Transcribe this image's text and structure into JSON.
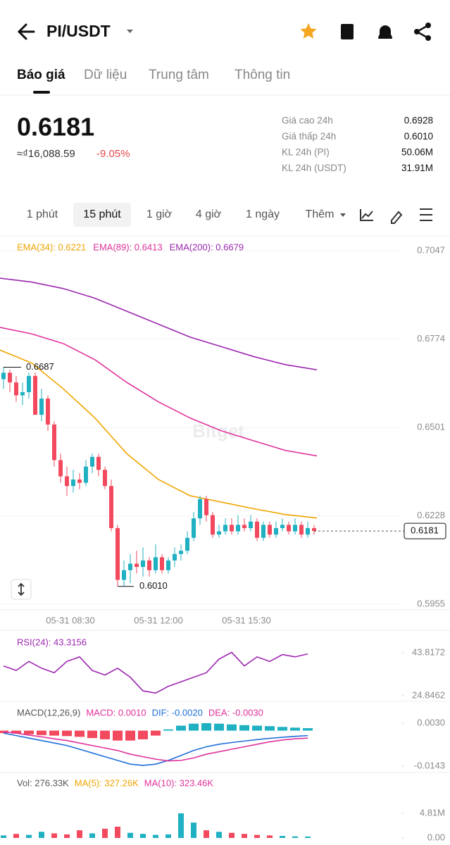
{
  "header": {
    "pair": "PI/USDT"
  },
  "tabs": {
    "items": [
      "Báo giá",
      "Dữ liệu",
      "Trung tâm",
      "Thông tin"
    ],
    "selected": 0
  },
  "price": {
    "last": "0.6181",
    "fiat": "≈₫16,088.59",
    "change": "-9.05%"
  },
  "stats": [
    {
      "label": "Giá cao 24h",
      "value": "0.6928"
    },
    {
      "label": "Giá thấp 24h",
      "value": "0.6010"
    },
    {
      "label": "KL 24h (PI)",
      "value": "50.06M"
    },
    {
      "label": "KL 24h (USDT)",
      "value": "31.91M"
    }
  ],
  "timeframes": {
    "items": [
      "1 phút",
      "15 phút",
      "1 giờ",
      "4 giờ",
      "1 ngày",
      "Thêm"
    ],
    "selected": 1
  },
  "main": {
    "watermark": "Bitget",
    "ylim": [
      0.5955,
      0.7047
    ],
    "yticks": [
      0.7047,
      0.6774,
      0.6501,
      0.6228,
      0.5955
    ],
    "xlabels": [
      "05-31 08:30",
      "05-31 12:00",
      "05-31 15:30"
    ],
    "current": {
      "value": 0.6181,
      "label": "0.6181"
    },
    "high": 0.6687,
    "low": {
      "value": 0.601,
      "label": "0.6010"
    },
    "ema": [
      {
        "name": "EMA(34): 0.6221",
        "color": "#f0a500",
        "values": [
          0.674,
          0.67,
          0.662,
          0.653,
          0.642,
          0.634,
          0.629,
          0.627,
          0.625,
          0.6232,
          0.6221
        ]
      },
      {
        "name": "EMA(89): 0.6413",
        "color": "#e0319b",
        "values": [
          0.681,
          0.679,
          0.676,
          0.671,
          0.664,
          0.658,
          0.653,
          0.649,
          0.646,
          0.643,
          0.6413
        ]
      },
      {
        "name": "EMA(200): 0.6679",
        "color": "#9c27b0",
        "values": [
          0.6962,
          0.695,
          0.693,
          0.69,
          0.686,
          0.682,
          0.678,
          0.675,
          0.672,
          0.6695,
          0.6679
        ]
      }
    ],
    "candles": [
      {
        "o": 0.665,
        "h": 0.6687,
        "l": 0.662,
        "c": 0.667
      },
      {
        "o": 0.667,
        "h": 0.668,
        "l": 0.661,
        "c": 0.664
      },
      {
        "o": 0.664,
        "h": 0.666,
        "l": 0.658,
        "c": 0.66
      },
      {
        "o": 0.66,
        "h": 0.664,
        "l": 0.657,
        "c": 0.661
      },
      {
        "o": 0.661,
        "h": 0.667,
        "l": 0.659,
        "c": 0.666
      },
      {
        "o": 0.666,
        "h": 0.667,
        "l": 0.654,
        "c": 0.654
      },
      {
        "o": 0.654,
        "h": 0.662,
        "l": 0.652,
        "c": 0.659
      },
      {
        "o": 0.659,
        "h": 0.66,
        "l": 0.649,
        "c": 0.651
      },
      {
        "o": 0.651,
        "h": 0.652,
        "l": 0.638,
        "c": 0.64
      },
      {
        "o": 0.64,
        "h": 0.642,
        "l": 0.633,
        "c": 0.635
      },
      {
        "o": 0.635,
        "h": 0.638,
        "l": 0.629,
        "c": 0.632
      },
      {
        "o": 0.632,
        "h": 0.637,
        "l": 0.63,
        "c": 0.634
      },
      {
        "o": 0.634,
        "h": 0.636,
        "l": 0.631,
        "c": 0.633
      },
      {
        "o": 0.633,
        "h": 0.64,
        "l": 0.632,
        "c": 0.638
      },
      {
        "o": 0.638,
        "h": 0.642,
        "l": 0.636,
        "c": 0.641
      },
      {
        "o": 0.641,
        "h": 0.642,
        "l": 0.635,
        "c": 0.637
      },
      {
        "o": 0.637,
        "h": 0.638,
        "l": 0.631,
        "c": 0.632
      },
      {
        "o": 0.632,
        "h": 0.634,
        "l": 0.618,
        "c": 0.619
      },
      {
        "o": 0.619,
        "h": 0.62,
        "l": 0.601,
        "c": 0.603
      },
      {
        "o": 0.603,
        "h": 0.609,
        "l": 0.601,
        "c": 0.606
      },
      {
        "o": 0.606,
        "h": 0.611,
        "l": 0.602,
        "c": 0.608
      },
      {
        "o": 0.608,
        "h": 0.612,
        "l": 0.605,
        "c": 0.607
      },
      {
        "o": 0.607,
        "h": 0.613,
        "l": 0.604,
        "c": 0.609
      },
      {
        "o": 0.609,
        "h": 0.61,
        "l": 0.604,
        "c": 0.606
      },
      {
        "o": 0.606,
        "h": 0.614,
        "l": 0.605,
        "c": 0.61
      },
      {
        "o": 0.61,
        "h": 0.611,
        "l": 0.605,
        "c": 0.606
      },
      {
        "o": 0.606,
        "h": 0.61,
        "l": 0.605,
        "c": 0.609
      },
      {
        "o": 0.609,
        "h": 0.613,
        "l": 0.607,
        "c": 0.611
      },
      {
        "o": 0.611,
        "h": 0.614,
        "l": 0.609,
        "c": 0.612
      },
      {
        "o": 0.612,
        "h": 0.618,
        "l": 0.611,
        "c": 0.616
      },
      {
        "o": 0.616,
        "h": 0.624,
        "l": 0.615,
        "c": 0.622
      },
      {
        "o": 0.622,
        "h": 0.629,
        "l": 0.62,
        "c": 0.628
      },
      {
        "o": 0.628,
        "h": 0.629,
        "l": 0.621,
        "c": 0.623
      },
      {
        "o": 0.623,
        "h": 0.624,
        "l": 0.616,
        "c": 0.617
      },
      {
        "o": 0.617,
        "h": 0.62,
        "l": 0.616,
        "c": 0.618
      },
      {
        "o": 0.618,
        "h": 0.622,
        "l": 0.617,
        "c": 0.62
      },
      {
        "o": 0.62,
        "h": 0.622,
        "l": 0.617,
        "c": 0.618
      },
      {
        "o": 0.618,
        "h": 0.623,
        "l": 0.617,
        "c": 0.62
      },
      {
        "o": 0.62,
        "h": 0.622,
        "l": 0.618,
        "c": 0.619
      },
      {
        "o": 0.619,
        "h": 0.623,
        "l": 0.618,
        "c": 0.621
      },
      {
        "o": 0.621,
        "h": 0.622,
        "l": 0.615,
        "c": 0.616
      },
      {
        "o": 0.616,
        "h": 0.621,
        "l": 0.615,
        "c": 0.62
      },
      {
        "o": 0.62,
        "h": 0.621,
        "l": 0.616,
        "c": 0.617
      },
      {
        "o": 0.617,
        "h": 0.621,
        "l": 0.616,
        "c": 0.619
      },
      {
        "o": 0.619,
        "h": 0.622,
        "l": 0.618,
        "c": 0.62
      },
      {
        "o": 0.62,
        "h": 0.621,
        "l": 0.617,
        "c": 0.618
      },
      {
        "o": 0.618,
        "h": 0.622,
        "l": 0.617,
        "c": 0.62
      },
      {
        "o": 0.62,
        "h": 0.621,
        "l": 0.616,
        "c": 0.617
      },
      {
        "o": 0.617,
        "h": 0.621,
        "l": 0.616,
        "c": 0.619
      },
      {
        "o": 0.619,
        "h": 0.62,
        "l": 0.617,
        "c": 0.6181
      }
    ]
  },
  "rsi": {
    "legend": "RSI(24): 43.3156",
    "ylim": [
      24.8462,
      43.8172
    ],
    "yticks": [
      43.8172,
      24.8462
    ],
    "values": [
      38,
      36,
      40,
      37,
      35,
      40,
      42,
      36,
      34,
      37,
      33,
      27,
      26,
      29,
      31,
      33,
      35,
      41,
      44,
      38,
      42,
      40,
      43,
      42,
      43.3156
    ]
  },
  "macd": {
    "legend": [
      "MACD(12,26,9)",
      "MACD: 0.0010",
      "DIF: -0.0020",
      "DEA: -0.0030"
    ],
    "ylim": [
      -0.0143,
      0.003
    ],
    "yticks": [
      {
        "value": 0.003,
        "label": "0.0030"
      },
      -0.0143
    ],
    "hist": [
      -0.001,
      -0.0012,
      -0.0015,
      -0.0018,
      -0.002,
      -0.0022,
      -0.0025,
      -0.003,
      -0.0035,
      -0.004,
      -0.004,
      -0.0035,
      -0.002,
      0.0005,
      0.002,
      0.0028,
      0.003,
      0.0028,
      0.0025,
      0.0022,
      0.002,
      0.0018,
      0.0015,
      0.0012,
      0.001
    ],
    "dif": [
      -0.001,
      -0.002,
      -0.003,
      -0.004,
      -0.005,
      -0.006,
      -0.0075,
      -0.009,
      -0.0105,
      -0.012,
      -0.0135,
      -0.014,
      -0.0135,
      -0.012,
      -0.01,
      -0.008,
      -0.0065,
      -0.0055,
      -0.0048,
      -0.0042,
      -0.0036,
      -0.0031,
      -0.0027,
      -0.0023,
      -0.002
    ],
    "dea": [
      -0.0005,
      -0.001,
      -0.0018,
      -0.0025,
      -0.0033,
      -0.004,
      -0.005,
      -0.006,
      -0.007,
      -0.008,
      -0.0095,
      -0.0105,
      -0.0115,
      -0.0122,
      -0.012,
      -0.011,
      -0.0095,
      -0.0085,
      -0.0075,
      -0.0065,
      -0.0055,
      -0.0045,
      -0.0038,
      -0.0033,
      -0.003
    ]
  },
  "vol": {
    "legend": [
      "Vol: 276.33K",
      "MA(5): 327.26K",
      "MA(10): 323.46K"
    ],
    "ylim": [
      0,
      4.81
    ],
    "yticks": [
      {
        "value": 4.81,
        "label": "4.81M"
      },
      {
        "value": 0,
        "label": "0.00"
      }
    ],
    "values": [
      0.5,
      0.8,
      0.6,
      1.2,
      0.9,
      0.7,
      1.5,
      0.9,
      1.8,
      2.2,
      1.0,
      0.8,
      0.6,
      0.7,
      4.8,
      3.0,
      1.5,
      1.2,
      1.0,
      0.8,
      0.6,
      0.5,
      0.4,
      0.3,
      0.28
    ]
  }
}
